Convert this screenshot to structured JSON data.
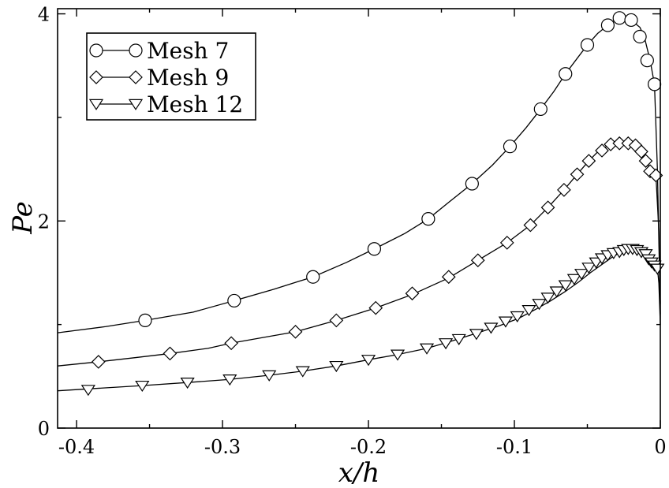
{
  "chart_data": {
    "type": "line",
    "xlabel": "x/h",
    "ylabel": "Pe",
    "xlim": [
      -0.413,
      0.0
    ],
    "ylim": [
      0,
      4.05
    ],
    "xticks": [
      -0.4,
      -0.3,
      -0.2,
      -0.1,
      0
    ],
    "xtick_labels": [
      "-0.4",
      "-0.3",
      "-0.2",
      "-0.1",
      "0"
    ],
    "yticks": [
      0,
      2,
      4
    ],
    "ytick_labels": [
      "0",
      "2",
      "4"
    ],
    "grid": false,
    "legend": {
      "position": "top-left",
      "entries": [
        "Mesh 7",
        "Mesh 9",
        "Mesh 12"
      ]
    },
    "series": [
      {
        "name": "Mesh 7",
        "marker": "circle",
        "curve": [
          [
            -0.413,
            0.92
          ],
          [
            -0.38,
            0.98
          ],
          [
            -0.353,
            1.04
          ],
          [
            -0.32,
            1.12
          ],
          [
            -0.292,
            1.23
          ],
          [
            -0.265,
            1.34
          ],
          [
            -0.238,
            1.46
          ],
          [
            -0.215,
            1.6
          ],
          [
            -0.196,
            1.73
          ],
          [
            -0.175,
            1.88
          ],
          [
            -0.159,
            2.02
          ],
          [
            -0.145,
            2.18
          ],
          [
            -0.129,
            2.36
          ],
          [
            -0.115,
            2.54
          ],
          [
            -0.103,
            2.72
          ],
          [
            -0.092,
            2.9
          ],
          [
            -0.082,
            3.08
          ],
          [
            -0.073,
            3.25
          ],
          [
            -0.065,
            3.42
          ],
          [
            -0.057,
            3.57
          ],
          [
            -0.05,
            3.7
          ],
          [
            -0.043,
            3.81
          ],
          [
            -0.036,
            3.89
          ],
          [
            -0.03,
            3.95
          ],
          [
            -0.028,
            3.96
          ],
          [
            -0.02,
            3.94
          ],
          [
            -0.014,
            3.87
          ],
          [
            -0.011,
            3.78
          ],
          [
            -0.007,
            3.55
          ],
          [
            -0.004,
            3.32
          ],
          [
            -0.002,
            2.5
          ],
          [
            0.0,
            1.1
          ]
        ],
        "markers": [
          [
            -0.353,
            1.04
          ],
          [
            -0.292,
            1.23
          ],
          [
            -0.238,
            1.46
          ],
          [
            -0.196,
            1.73
          ],
          [
            -0.159,
            2.02
          ],
          [
            -0.129,
            2.36
          ],
          [
            -0.103,
            2.72
          ],
          [
            -0.082,
            3.08
          ],
          [
            -0.065,
            3.42
          ],
          [
            -0.05,
            3.7
          ],
          [
            -0.036,
            3.89
          ],
          [
            -0.028,
            3.96
          ],
          [
            -0.02,
            3.94
          ],
          [
            -0.014,
            3.78
          ],
          [
            -0.009,
            3.55
          ],
          [
            -0.004,
            3.32
          ]
        ]
      },
      {
        "name": "Mesh 9",
        "marker": "diamond",
        "curve": [
          [
            -0.413,
            0.6
          ],
          [
            -0.385,
            0.64
          ],
          [
            -0.36,
            0.68
          ],
          [
            -0.336,
            0.72
          ],
          [
            -0.31,
            0.77
          ],
          [
            -0.294,
            0.82
          ],
          [
            -0.27,
            0.88
          ],
          [
            -0.25,
            0.93
          ],
          [
            -0.222,
            1.04
          ],
          [
            -0.195,
            1.16
          ],
          [
            -0.17,
            1.29
          ],
          [
            -0.145,
            1.45
          ],
          [
            -0.125,
            1.62
          ],
          [
            -0.105,
            1.79
          ],
          [
            -0.089,
            1.96
          ],
          [
            -0.077,
            2.13
          ],
          [
            -0.066,
            2.3
          ],
          [
            -0.057,
            2.45
          ],
          [
            -0.049,
            2.58
          ],
          [
            -0.042,
            2.68
          ],
          [
            -0.034,
            2.74
          ],
          [
            -0.028,
            2.75
          ],
          [
            -0.023,
            2.75
          ],
          [
            -0.018,
            2.72
          ],
          [
            -0.013,
            2.65
          ],
          [
            -0.009,
            2.56
          ],
          [
            -0.006,
            2.46
          ],
          [
            -0.003,
            2.44
          ],
          [
            -0.001,
            1.9
          ],
          [
            0.0,
            1.2
          ]
        ],
        "markers": [
          [
            -0.385,
            0.64
          ],
          [
            -0.336,
            0.72
          ],
          [
            -0.294,
            0.82
          ],
          [
            -0.25,
            0.93
          ],
          [
            -0.222,
            1.04
          ],
          [
            -0.195,
            1.16
          ],
          [
            -0.17,
            1.3
          ],
          [
            -0.145,
            1.46
          ],
          [
            -0.125,
            1.62
          ],
          [
            -0.105,
            1.79
          ],
          [
            -0.089,
            1.96
          ],
          [
            -0.077,
            2.13
          ],
          [
            -0.066,
            2.3
          ],
          [
            -0.057,
            2.45
          ],
          [
            -0.049,
            2.58
          ],
          [
            -0.04,
            2.68
          ],
          [
            -0.034,
            2.74
          ],
          [
            -0.028,
            2.75
          ],
          [
            -0.022,
            2.75
          ],
          [
            -0.017,
            2.73
          ],
          [
            -0.013,
            2.67
          ],
          [
            -0.01,
            2.58
          ],
          [
            -0.007,
            2.48
          ],
          [
            -0.003,
            2.44
          ]
        ]
      },
      {
        "name": "Mesh 12",
        "marker": "triangle-down",
        "curve": [
          [
            -0.413,
            0.36
          ],
          [
            -0.39,
            0.38
          ],
          [
            -0.355,
            0.41
          ],
          [
            -0.324,
            0.44
          ],
          [
            -0.295,
            0.47
          ],
          [
            -0.268,
            0.51
          ],
          [
            -0.245,
            0.55
          ],
          [
            -0.222,
            0.6
          ],
          [
            -0.2,
            0.66
          ],
          [
            -0.18,
            0.71
          ],
          [
            -0.16,
            0.77
          ],
          [
            -0.143,
            0.84
          ],
          [
            -0.125,
            0.92
          ],
          [
            -0.11,
            0.99
          ],
          [
            -0.097,
            1.06
          ],
          [
            -0.085,
            1.15
          ],
          [
            -0.075,
            1.23
          ],
          [
            -0.065,
            1.32
          ],
          [
            -0.056,
            1.41
          ],
          [
            -0.048,
            1.5
          ],
          [
            -0.04,
            1.58
          ],
          [
            -0.033,
            1.65
          ],
          [
            -0.027,
            1.7
          ],
          [
            -0.022,
            1.73
          ],
          [
            -0.018,
            1.73
          ],
          [
            -0.014,
            1.71
          ],
          [
            -0.01,
            1.67
          ],
          [
            -0.007,
            1.6
          ],
          [
            -0.004,
            1.57
          ],
          [
            -0.002,
            1.55
          ],
          [
            -0.001,
            1.4
          ],
          [
            0.0,
            1.0
          ]
        ],
        "markers": [
          [
            -0.392,
            0.37
          ],
          [
            -0.355,
            0.41
          ],
          [
            -0.324,
            0.44
          ],
          [
            -0.295,
            0.47
          ],
          [
            -0.268,
            0.51
          ],
          [
            -0.245,
            0.55
          ],
          [
            -0.222,
            0.6
          ],
          [
            -0.2,
            0.66
          ],
          [
            -0.18,
            0.71
          ],
          [
            -0.16,
            0.77
          ],
          [
            -0.147,
            0.82
          ],
          [
            -0.138,
            0.86
          ],
          [
            -0.126,
            0.91
          ],
          [
            -0.116,
            0.97
          ],
          [
            -0.106,
            1.03
          ],
          [
            -0.098,
            1.08
          ],
          [
            -0.09,
            1.14
          ],
          [
            -0.083,
            1.2
          ],
          [
            -0.077,
            1.26
          ],
          [
            -0.071,
            1.32
          ],
          [
            -0.065,
            1.38
          ],
          [
            -0.059,
            1.44
          ],
          [
            -0.054,
            1.49
          ],
          [
            -0.049,
            1.55
          ],
          [
            -0.044,
            1.6
          ],
          [
            -0.04,
            1.64
          ],
          [
            -0.036,
            1.67
          ],
          [
            -0.032,
            1.69
          ],
          [
            -0.028,
            1.7
          ],
          [
            -0.025,
            1.72
          ],
          [
            -0.022,
            1.73
          ],
          [
            -0.019,
            1.73
          ],
          [
            -0.016,
            1.72
          ],
          [
            -0.013,
            1.7
          ],
          [
            -0.01,
            1.68
          ],
          [
            -0.008,
            1.63
          ],
          [
            -0.006,
            1.6
          ],
          [
            -0.004,
            1.57
          ],
          [
            -0.002,
            1.54
          ]
        ]
      }
    ]
  }
}
